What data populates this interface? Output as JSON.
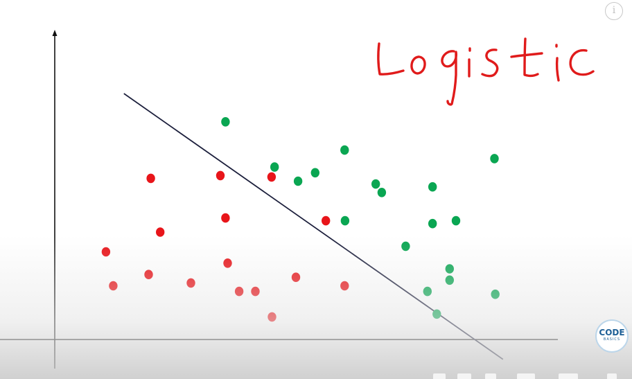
{
  "overlay": {
    "info_symbol": "i",
    "handwritten_word": "logistic",
    "logo_word": "CODE",
    "logo_sub": "BASICS"
  },
  "icons": {
    "info": "info-icon",
    "logo": "codebasics-logo-icon"
  },
  "colors": {
    "class_a": "#e8151a",
    "class_b": "#0aa652",
    "boundary": "#1c1f3c",
    "axis": "#111111",
    "ink": "#e01b1b",
    "logo": "#1d5f96"
  },
  "chart_data": {
    "type": "scatter",
    "title": "",
    "xlabel": "",
    "ylabel": "",
    "xlim": [
      0,
      100
    ],
    "ylim": [
      0,
      100
    ],
    "grid": false,
    "legend": "none",
    "series": [
      {
        "color": "#e8151a",
        "points": [
          [
            22.5,
            57.0
          ],
          [
            38.8,
            58.0
          ],
          [
            50.8,
            57.5
          ],
          [
            40.0,
            43.0
          ],
          [
            63.5,
            42.0
          ],
          [
            24.7,
            38.0
          ],
          [
            12.0,
            31.0
          ],
          [
            22.0,
            23.0
          ],
          [
            40.5,
            27.0
          ],
          [
            56.5,
            22.0
          ],
          [
            13.7,
            19.0
          ],
          [
            31.9,
            20.0
          ],
          [
            43.2,
            17.0
          ],
          [
            47.0,
            17.0
          ],
          [
            67.9,
            19.0
          ],
          [
            50.9,
            8.0
          ]
        ]
      },
      {
        "color": "#0aa652",
        "points": [
          [
            40.0,
            77.0
          ],
          [
            67.9,
            67.0
          ],
          [
            51.5,
            61.0
          ],
          [
            61.0,
            59.0
          ],
          [
            57.0,
            56.0
          ],
          [
            75.2,
            55.0
          ],
          [
            76.6,
            52.0
          ],
          [
            88.5,
            54.0
          ],
          [
            103.0,
            64.0
          ],
          [
            68.0,
            42.0
          ],
          [
            88.5,
            41.0
          ],
          [
            94.0,
            42.0
          ],
          [
            82.2,
            33.0
          ],
          [
            92.5,
            25.0
          ],
          [
            92.5,
            21.0
          ],
          [
            87.3,
            17.0
          ],
          [
            103.2,
            16.0
          ],
          [
            89.5,
            9.0
          ]
        ]
      }
    ],
    "boundary_line": [
      [
        16.2,
        87.0
      ],
      [
        105.0,
        -7.0
      ]
    ]
  }
}
